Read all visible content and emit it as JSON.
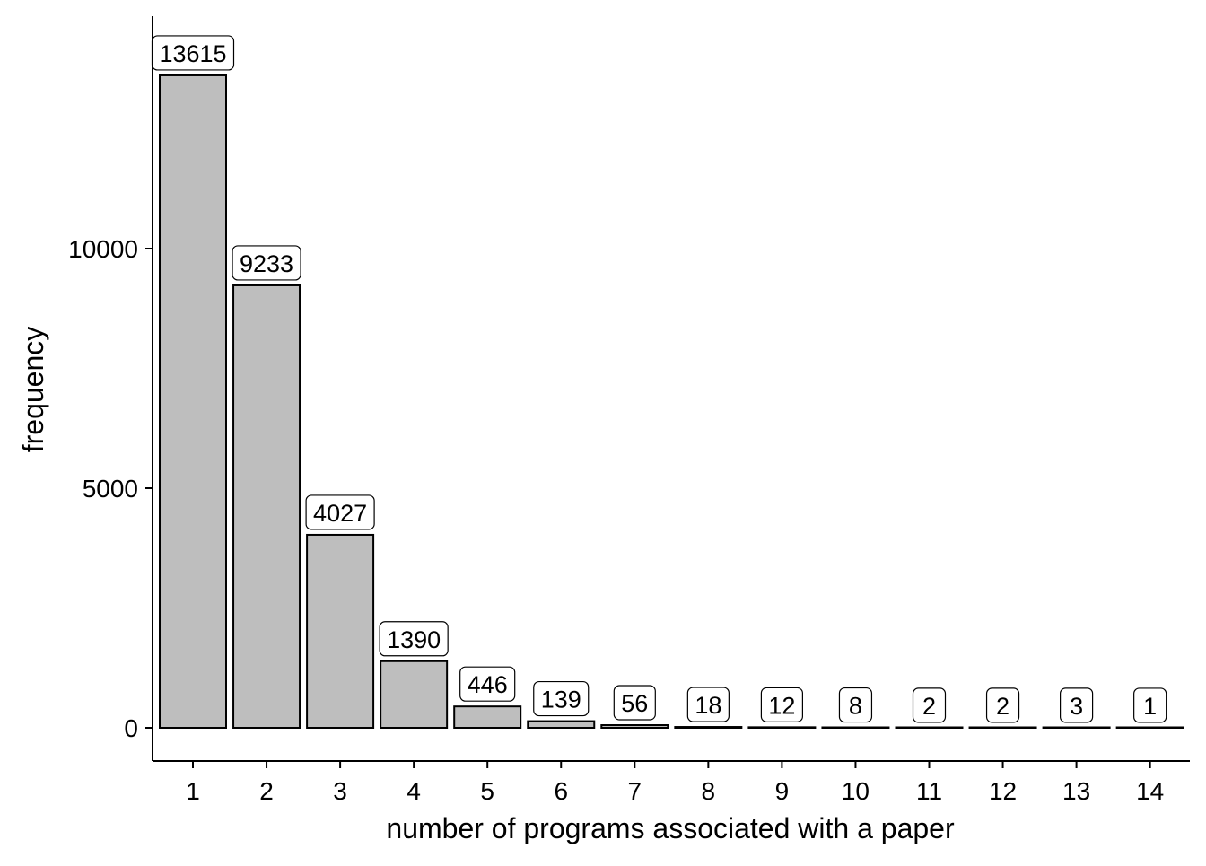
{
  "chart_data": {
    "type": "bar",
    "title": "",
    "xlabel": "number of programs associated with a paper",
    "ylabel": "frequency",
    "categories": [
      "1",
      "2",
      "3",
      "4",
      "5",
      "6",
      "7",
      "8",
      "9",
      "10",
      "11",
      "12",
      "13",
      "14"
    ],
    "values": [
      13615,
      9233,
      4027,
      1390,
      446,
      139,
      56,
      18,
      12,
      8,
      2,
      2,
      3,
      1
    ],
    "data_labels": [
      "13615",
      "9233",
      "4027",
      "1390",
      "446",
      "139",
      "56",
      "18",
      "12",
      "8",
      "2",
      "2",
      "3",
      "1"
    ],
    "ylim": [
      -700,
      14800
    ],
    "yticks": [
      0,
      5000,
      10000
    ],
    "ytick_labels": [
      "0",
      "5000",
      "10000"
    ],
    "grid": false,
    "legend": "none",
    "colors": {
      "bar_fill": "#bebebe",
      "bar_stroke": "#000000",
      "label_box": "#ffffff"
    }
  }
}
